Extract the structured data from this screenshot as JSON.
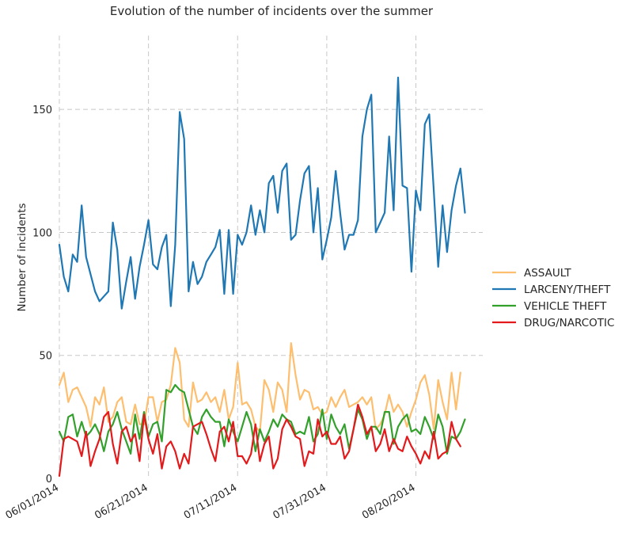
{
  "chart_data": {
    "type": "line",
    "title": "Evolution of the number of incidents over the summer",
    "xlabel": "",
    "ylabel": "Number of incidents",
    "x_start": "06/01/2014",
    "x_end": "09/04/2014",
    "x_ticks": [
      "06/01/2014",
      "06/21/2014",
      "07/11/2014",
      "07/31/2014",
      "08/20/2014"
    ],
    "y_ticks": [
      0,
      50,
      100,
      150
    ],
    "ylim": [
      0,
      180
    ],
    "grid": true,
    "legend": "center-right",
    "series": [
      {
        "name": "ASSAULT",
        "color": "#fdbf6f",
        "values": [
          38,
          43,
          31,
          36,
          37,
          33,
          29,
          21,
          33,
          30,
          37,
          23,
          25,
          31,
          33,
          23,
          22,
          30,
          22,
          22,
          33,
          33,
          23,
          31,
          32,
          38,
          53,
          47,
          24,
          21,
          39,
          31,
          32,
          35,
          31,
          33,
          27,
          36,
          24,
          29,
          47,
          30,
          31,
          28,
          21,
          19,
          40,
          36,
          27,
          39,
          36,
          27,
          55,
          42,
          32,
          36,
          35,
          28,
          29,
          26,
          27,
          33,
          29,
          33,
          36,
          29,
          30,
          31,
          33,
          30,
          33,
          20,
          22,
          26,
          34,
          27,
          30,
          27,
          21,
          27,
          32,
          39,
          42,
          34,
          20,
          40,
          31,
          24,
          43,
          28,
          43
        ]
      },
      {
        "name": "LARCENY/THEFT",
        "color": "#1f78b4",
        "values": [
          95,
          82,
          76,
          91,
          88,
          111,
          90,
          83,
          76,
          72,
          74,
          76,
          104,
          93,
          69,
          80,
          90,
          73,
          86,
          95,
          105,
          87,
          85,
          94,
          99,
          70,
          95,
          149,
          138,
          76,
          88,
          79,
          82,
          88,
          91,
          94,
          101,
          75,
          101,
          75,
          99,
          95,
          100,
          111,
          99,
          109,
          100,
          120,
          123,
          108,
          125,
          128,
          97,
          99,
          113,
          124,
          127,
          100,
          118,
          89,
          97,
          106,
          125,
          108,
          93,
          99,
          99,
          105,
          139,
          150,
          156,
          100,
          104,
          108,
          139,
          109,
          163,
          119,
          118,
          84,
          117,
          109,
          144,
          148,
          117,
          86,
          111,
          92,
          109,
          119,
          126,
          108
        ]
      },
      {
        "name": "VEHICLE THEFT",
        "color": "#33a02c",
        "values": [
          19,
          15,
          25,
          26,
          17,
          23,
          17,
          19,
          22,
          18,
          11,
          19,
          22,
          27,
          20,
          15,
          10,
          26,
          16,
          27,
          17,
          22,
          23,
          15,
          36,
          35,
          38,
          36,
          35,
          28,
          21,
          18,
          25,
          28,
          25,
          23,
          23,
          13,
          24,
          19,
          15,
          21,
          27,
          22,
          11,
          20,
          15,
          19,
          24,
          21,
          26,
          24,
          23,
          18,
          19,
          18,
          25,
          15,
          18,
          28,
          16,
          26,
          21,
          18,
          22,
          12,
          20,
          28,
          24,
          16,
          21,
          21,
          18,
          27,
          27,
          14,
          21,
          24,
          26,
          19,
          20,
          18,
          25,
          21,
          16,
          26,
          21,
          10,
          17,
          16,
          19,
          24
        ]
      },
      {
        "name": "DRUG/NARCOTIC",
        "color": "#e31a1c",
        "values": [
          1,
          16,
          17,
          16,
          15,
          9,
          19,
          5,
          11,
          16,
          25,
          27,
          14,
          6,
          19,
          21,
          15,
          18,
          7,
          26,
          16,
          10,
          18,
          4,
          13,
          15,
          11,
          4,
          10,
          6,
          21,
          22,
          23,
          18,
          12,
          7,
          19,
          21,
          15,
          23,
          9,
          9,
          6,
          10,
          22,
          7,
          14,
          17,
          4,
          8,
          20,
          24,
          21,
          17,
          16,
          5,
          11,
          10,
          24,
          17,
          19,
          14,
          14,
          17,
          8,
          11,
          20,
          30,
          25,
          18,
          21,
          11,
          14,
          20,
          11,
          16,
          12,
          11,
          17,
          13,
          10,
          6,
          11,
          8,
          19,
          8,
          10,
          11,
          23,
          16,
          13
        ]
      }
    ]
  }
}
